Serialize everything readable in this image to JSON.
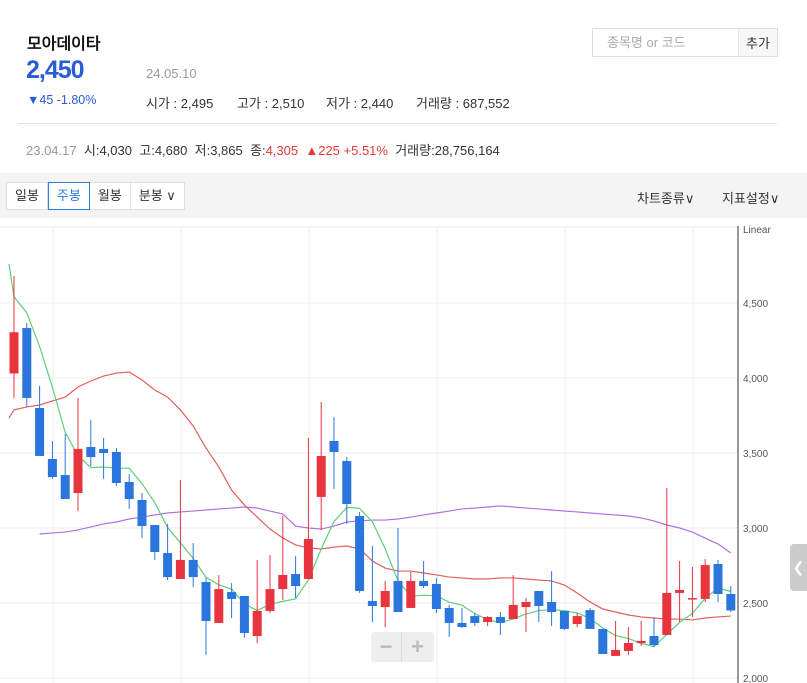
{
  "stock": {
    "name": "모아데이타",
    "price": "2,450",
    "date": "24.05.10",
    "change": "▼45 -1.80%",
    "open_label": "시가",
    "open": "2,495",
    "high_label": "고가",
    "high": "2,510",
    "low_label": "저가",
    "low": "2,440",
    "volume_label": "거래량",
    "volume": "687,552"
  },
  "search": {
    "placeholder": "종목명 or 코드",
    "add_label": "추가"
  },
  "selected_candle": {
    "date": "23.04.17",
    "open_label": "시",
    "open": "4,030",
    "high_label": "고",
    "high": "4,680",
    "low_label": "저",
    "low": "3,865",
    "close_label": "종",
    "close": "4,305",
    "change": "▲225 +5.51%",
    "volume_label": "거래량",
    "volume": "28,756,164"
  },
  "toolbar": {
    "tabs": [
      {
        "label": "일봉"
      },
      {
        "label": "주봉",
        "active": true
      },
      {
        "label": "월봉"
      },
      {
        "label": "분봉 ∨"
      }
    ],
    "chart_type": "차트종류∨",
    "indicator": "지표설정∨"
  },
  "zoom": {
    "minus": "−",
    "plus": "+"
  },
  "colors": {
    "up": "#e8343e",
    "down": "#2a76dd",
    "ma5": "#5fcf7a",
    "ma20": "#e0605a",
    "ma60": "#b070e0",
    "accent": "#2a5bd7"
  },
  "chart_data": {
    "type": "candlestick",
    "scale_label": "Linear",
    "ylim": [
      2000,
      4750
    ],
    "yticks": [
      "2,000",
      "2,500",
      "3,000",
      "3,500",
      "4,000",
      "4,500"
    ],
    "ytick_values": [
      2000,
      2500,
      3000,
      3500,
      4000,
      4500
    ],
    "candles": [
      [
        4030,
        4680,
        3865,
        4305
      ],
      [
        4333,
        4367,
        3807,
        3867
      ],
      [
        3800,
        3947,
        3480,
        3480
      ],
      [
        3460,
        3580,
        3327,
        3340
      ],
      [
        3353,
        3627,
        3193,
        3193
      ],
      [
        3233,
        3867,
        3113,
        3527
      ],
      [
        3540,
        3720,
        3413,
        3473
      ],
      [
        3527,
        3600,
        3327,
        3500
      ],
      [
        3507,
        3533,
        3280,
        3300
      ],
      [
        3307,
        3360,
        3127,
        3193
      ],
      [
        3187,
        3233,
        2933,
        3013
      ],
      [
        3020,
        3020,
        2787,
        2840
      ],
      [
        2833,
        3027,
        2653,
        2673
      ],
      [
        2660,
        3320,
        2660,
        2787
      ],
      [
        2787,
        2900,
        2607,
        2673
      ],
      [
        2640,
        2667,
        2153,
        2380
      ],
      [
        2367,
        2687,
        2367,
        2593
      ],
      [
        2573,
        2633,
        2400,
        2527
      ],
      [
        2547,
        2547,
        2267,
        2300
      ],
      [
        2280,
        2787,
        2233,
        2447
      ],
      [
        2447,
        2820,
        2433,
        2593
      ],
      [
        2593,
        3080,
        2520,
        2687
      ],
      [
        2693,
        2813,
        2533,
        2613
      ],
      [
        2660,
        3600,
        2660,
        2927
      ],
      [
        3207,
        3840,
        2987,
        3480
      ],
      [
        3580,
        3740,
        3260,
        3507
      ],
      [
        3447,
        3473,
        3027,
        3160
      ],
      [
        3080,
        3107,
        2567,
        2580
      ],
      [
        2513,
        2880,
        2373,
        2480
      ],
      [
        2473,
        2647,
        2340,
        2580
      ],
      [
        2647,
        3000,
        2440,
        2440
      ],
      [
        2467,
        2707,
        2467,
        2647
      ],
      [
        2647,
        2780,
        2600,
        2613
      ],
      [
        2627,
        2667,
        2433,
        2460
      ],
      [
        2467,
        2487,
        2273,
        2367
      ],
      [
        2367,
        2467,
        2333,
        2340
      ],
      [
        2413,
        2433,
        2347,
        2367
      ],
      [
        2373,
        2413,
        2347,
        2407
      ],
      [
        2407,
        2440,
        2287,
        2367
      ],
      [
        2393,
        2687,
        2393,
        2487
      ],
      [
        2473,
        2533,
        2307,
        2507
      ],
      [
        2580,
        2580,
        2373,
        2480
      ],
      [
        2507,
        2713,
        2347,
        2440
      ],
      [
        2447,
        2447,
        2320,
        2327
      ],
      [
        2360,
        2433,
        2340,
        2413
      ],
      [
        2453,
        2467,
        2327,
        2327
      ],
      [
        2327,
        2327,
        2160,
        2160
      ],
      [
        2147,
        2380,
        2147,
        2187
      ],
      [
        2180,
        2340,
        2153,
        2233
      ],
      [
        2233,
        2380,
        2213,
        2247
      ],
      [
        2280,
        2400,
        2207,
        2220
      ],
      [
        2287,
        3267,
        2287,
        2567
      ],
      [
        2567,
        2780,
        2373,
        2587
      ],
      [
        2527,
        2740,
        2407,
        2533
      ],
      [
        2527,
        2793,
        2507,
        2753
      ],
      [
        2760,
        2787,
        2507,
        2560
      ],
      [
        2560,
        2613,
        2440,
        2450
      ]
    ],
    "ma20": [
      3787,
      3807,
      3820,
      3847,
      3873,
      3940,
      3980,
      4013,
      4033,
      4040,
      3987,
      3920,
      3873,
      3787,
      3680,
      3533,
      3407,
      3253,
      3153,
      3073,
      2993,
      2933,
      2887,
      2867,
      2860,
      2873,
      2880,
      2860,
      2780,
      2733,
      2713,
      2713,
      2700,
      2687,
      2673,
      2667,
      2660,
      2660,
      2667,
      2667,
      2660,
      2653,
      2647,
      2620,
      2567,
      2507,
      2460,
      2440,
      2420,
      2407,
      2400,
      2393,
      2393,
      2387,
      2400,
      2407,
      2413
    ],
    "ma60_start_index": 2,
    "ma60": [
      2960,
      2967,
      2973,
      2987,
      3007,
      3027,
      3040,
      3060,
      3073,
      3087,
      3100,
      3107,
      3113,
      3120,
      3127,
      3133,
      3140,
      3133,
      3113,
      3093,
      3013,
      3000,
      2993,
      3013,
      3040,
      3047,
      3053,
      3053,
      3060,
      3073,
      3087,
      3100,
      3113,
      3127,
      3133,
      3140,
      3147,
      3140,
      3133,
      3127,
      3120,
      3113,
      3107,
      3100,
      3093,
      3087,
      3080,
      3067,
      3047,
      3020,
      3000,
      2973,
      2933,
      2893,
      2833
    ]
  }
}
